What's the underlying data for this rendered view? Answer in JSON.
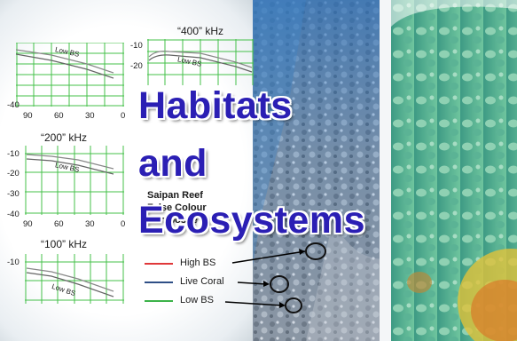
{
  "overlay": {
    "line1": "Habitats",
    "line2": "and",
    "line3": "Ecosystems"
  },
  "colors": {
    "title_fill": "#2b1fb4",
    "high_bs": "#e0383a",
    "live_coral": "#2f4f86",
    "low_bs": "#3cb34a",
    "grid": "#44c04a"
  },
  "charts": {
    "chart_400": {
      "title": "“400” kHz",
      "curve_label": "Low BS",
      "yticks": [
        "-10",
        "-20"
      ]
    },
    "chart_topleft": {
      "curve_label": "Low BS",
      "yticks": [
        "-40"
      ],
      "xticks": [
        "90",
        "60",
        "30",
        "0"
      ]
    },
    "chart_200": {
      "title": "“200” kHz",
      "curve_label": "Low BS",
      "yticks": [
        "-10",
        "-20",
        "-30",
        "-40"
      ],
      "xticks": [
        "90",
        "60",
        "30",
        "0"
      ]
    },
    "chart_100": {
      "title": "“100” kHz",
      "curve_label": "Low BS",
      "yticks": [
        "-10"
      ]
    }
  },
  "reef": {
    "title_line1": "Saipan Reef",
    "title_line2": "False Colour",
    "title_line3": "Composite"
  },
  "legend": [
    {
      "label": "High BS",
      "color_key": "high_bs"
    },
    {
      "label": "Live Coral",
      "color_key": "live_coral"
    },
    {
      "label": "Low BS",
      "color_key": "low_bs"
    }
  ]
}
